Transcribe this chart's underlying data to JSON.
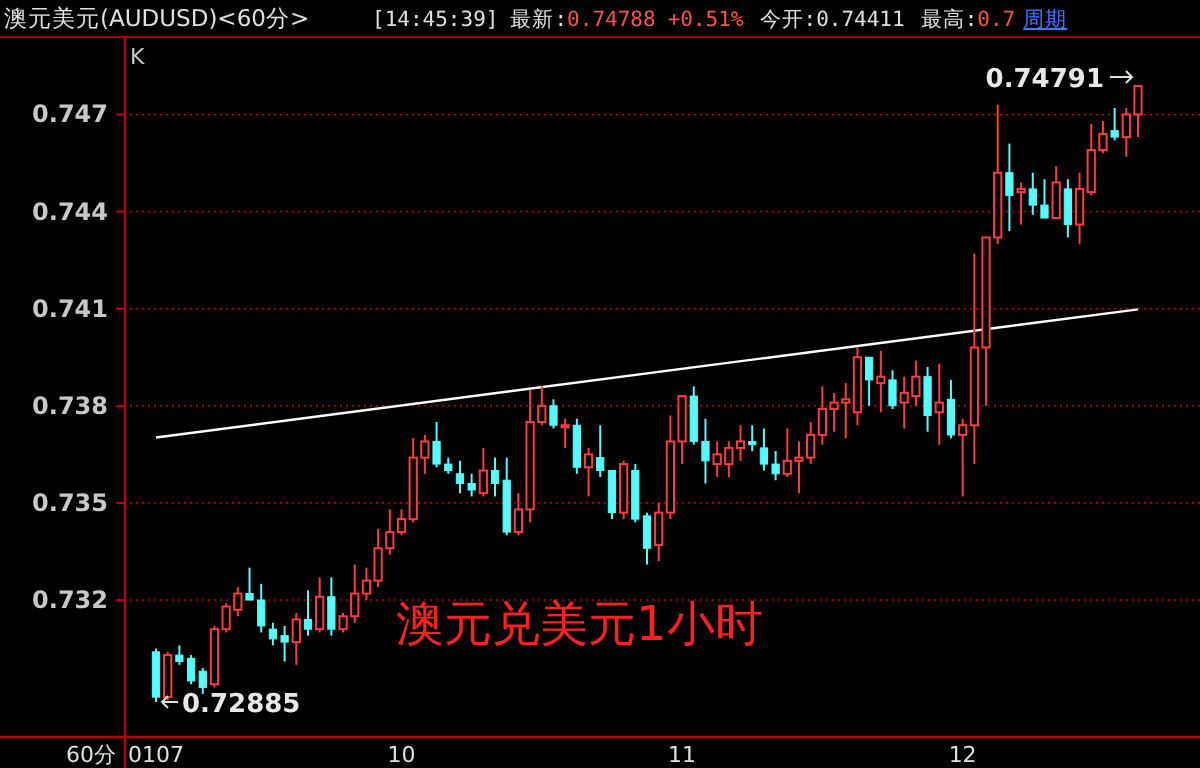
{
  "chart_data": {
    "type": "candlestick",
    "title": "澳元美元(AUDUSD)<60分>",
    "xlabel": "60分",
    "categories": [
      "0107",
      null,
      null,
      null,
      null,
      null,
      null,
      null,
      null,
      null,
      null,
      null,
      null,
      null,
      null,
      null,
      null,
      null,
      null,
      null,
      null,
      "10",
      null,
      null,
      null,
      null,
      null,
      null,
      null,
      null,
      null,
      null,
      null,
      null,
      null,
      null,
      null,
      null,
      null,
      null,
      null,
      null,
      null,
      null,
      null,
      "11",
      null,
      null,
      null,
      null,
      null,
      null,
      null,
      null,
      null,
      null,
      null,
      null,
      null,
      null,
      null,
      null,
      null,
      null,
      null,
      null,
      null,
      null,
      null,
      "12",
      null,
      null,
      null,
      null,
      null,
      null,
      null,
      null,
      null,
      null,
      null,
      null,
      null,
      null,
      null
    ],
    "ohlc": [
      [
        0.7304,
        0.7305,
        0.72885,
        0.729
      ],
      [
        0.729,
        0.7304,
        0.7289,
        0.7303
      ],
      [
        0.7303,
        0.7306,
        0.73,
        0.7301
      ],
      [
        0.7302,
        0.7303,
        0.7294,
        0.7295
      ],
      [
        0.7298,
        0.7299,
        0.7291,
        0.7293
      ],
      [
        0.7294,
        0.7312,
        0.7293,
        0.7311
      ],
      [
        0.7311,
        0.7319,
        0.731,
        0.7318
      ],
      [
        0.7317,
        0.7324,
        0.7315,
        0.7322
      ],
      [
        0.7322,
        0.733,
        0.732,
        0.732
      ],
      [
        0.732,
        0.7325,
        0.731,
        0.7312
      ],
      [
        0.7311,
        0.7313,
        0.7306,
        0.7308
      ],
      [
        0.7309,
        0.7312,
        0.7301,
        0.7307
      ],
      [
        0.7307,
        0.7316,
        0.73,
        0.7314
      ],
      [
        0.7314,
        0.7323,
        0.7309,
        0.7311
      ],
      [
        0.7311,
        0.7327,
        0.731,
        0.7321
      ],
      [
        0.7321,
        0.7327,
        0.7309,
        0.7311
      ],
      [
        0.7311,
        0.7316,
        0.731,
        0.7315
      ],
      [
        0.7315,
        0.7331,
        0.7313,
        0.7322
      ],
      [
        0.7322,
        0.733,
        0.732,
        0.7326
      ],
      [
        0.7326,
        0.7342,
        0.7324,
        0.7336
      ],
      [
        0.7336,
        0.7348,
        0.7334,
        0.7341
      ],
      [
        0.7341,
        0.7348,
        0.734,
        0.7345
      ],
      [
        0.7345,
        0.737,
        0.7344,
        0.7364
      ],
      [
        0.7364,
        0.7371,
        0.7359,
        0.7369
      ],
      [
        0.7369,
        0.7375,
        0.7361,
        0.7362
      ],
      [
        0.7362,
        0.7364,
        0.7359,
        0.736
      ],
      [
        0.7359,
        0.7363,
        0.7353,
        0.7356
      ],
      [
        0.7356,
        0.7359,
        0.7352,
        0.7354
      ],
      [
        0.7353,
        0.7367,
        0.7352,
        0.736
      ],
      [
        0.736,
        0.7364,
        0.7352,
        0.7356
      ],
      [
        0.7357,
        0.7364,
        0.734,
        0.7341
      ],
      [
        0.7341,
        0.7353,
        0.734,
        0.7348
      ],
      [
        0.7348,
        0.7385,
        0.7344,
        0.7375
      ],
      [
        0.7375,
        0.7386,
        0.7374,
        0.738
      ],
      [
        0.738,
        0.7382,
        0.7373,
        0.7374
      ],
      [
        0.7374,
        0.7376,
        0.7367,
        0.7374
      ],
      [
        0.7374,
        0.7376,
        0.7359,
        0.7361
      ],
      [
        0.7361,
        0.7367,
        0.7352,
        0.7365
      ],
      [
        0.7364,
        0.7374,
        0.7358,
        0.736
      ],
      [
        0.736,
        0.736,
        0.7345,
        0.7347
      ],
      [
        0.7347,
        0.7363,
        0.7345,
        0.7362
      ],
      [
        0.736,
        0.7362,
        0.7344,
        0.7345
      ],
      [
        0.7346,
        0.7347,
        0.7331,
        0.7336
      ],
      [
        0.7337,
        0.735,
        0.7332,
        0.7347
      ],
      [
        0.7347,
        0.7377,
        0.7345,
        0.7369
      ],
      [
        0.7369,
        0.7383,
        0.7362,
        0.7383
      ],
      [
        0.7383,
        0.7386,
        0.7368,
        0.7369
      ],
      [
        0.7369,
        0.7376,
        0.7356,
        0.7363
      ],
      [
        0.7362,
        0.7369,
        0.7358,
        0.7365
      ],
      [
        0.7362,
        0.7369,
        0.7358,
        0.7367
      ],
      [
        0.7367,
        0.7374,
        0.7363,
        0.7369
      ],
      [
        0.7369,
        0.7374,
        0.7366,
        0.7368
      ],
      [
        0.7367,
        0.7373,
        0.736,
        0.7362
      ],
      [
        0.7362,
        0.7366,
        0.7357,
        0.7359
      ],
      [
        0.7359,
        0.7373,
        0.7358,
        0.7363
      ],
      [
        0.7363,
        0.7369,
        0.7353,
        0.7364
      ],
      [
        0.7364,
        0.7375,
        0.7362,
        0.7371
      ],
      [
        0.7371,
        0.7386,
        0.7368,
        0.7379
      ],
      [
        0.7379,
        0.7384,
        0.7372,
        0.7381
      ],
      [
        0.7381,
        0.7387,
        0.737,
        0.7382
      ],
      [
        0.7378,
        0.7398,
        0.7374,
        0.7395
      ],
      [
        0.7395,
        0.7395,
        0.738,
        0.7388
      ],
      [
        0.7387,
        0.7397,
        0.7378,
        0.7389
      ],
      [
        0.7388,
        0.7391,
        0.7379,
        0.738
      ],
      [
        0.7381,
        0.7389,
        0.7373,
        0.7384
      ],
      [
        0.7383,
        0.7394,
        0.738,
        0.7389
      ],
      [
        0.7389,
        0.7392,
        0.7372,
        0.7377
      ],
      [
        0.7378,
        0.7393,
        0.7368,
        0.7381
      ],
      [
        0.7382,
        0.7388,
        0.737,
        0.7371
      ],
      [
        0.7371,
        0.7376,
        0.7352,
        0.7374
      ],
      [
        0.7374,
        0.7427,
        0.7362,
        0.7398
      ],
      [
        0.7398,
        0.7432,
        0.738,
        0.7432
      ],
      [
        0.7432,
        0.7473,
        0.743,
        0.7452
      ],
      [
        0.7452,
        0.7461,
        0.7434,
        0.7445
      ],
      [
        0.7446,
        0.7449,
        0.7436,
        0.7447
      ],
      [
        0.7447,
        0.7452,
        0.7439,
        0.7442
      ],
      [
        0.7442,
        0.745,
        0.7438,
        0.7438
      ],
      [
        0.7438,
        0.7454,
        0.7438,
        0.7449
      ],
      [
        0.7447,
        0.745,
        0.7432,
        0.7436
      ],
      [
        0.7436,
        0.7452,
        0.743,
        0.7447
      ],
      [
        0.7446,
        0.7467,
        0.7445,
        0.7459
      ],
      [
        0.7459,
        0.7468,
        0.7458,
        0.7464
      ],
      [
        0.7465,
        0.7472,
        0.7462,
        0.7463
      ],
      [
        0.7463,
        0.7472,
        0.7457,
        0.747
      ],
      [
        0.747,
        0.74791,
        0.7463,
        0.74788
      ]
    ],
    "series": [
      {
        "type": "line",
        "color": "#ffffff",
        "values": [
          0.73702,
          null,
          null,
          null,
          null,
          null,
          null,
          null,
          null,
          null,
          null,
          null,
          null,
          null,
          null,
          null,
          null,
          null,
          null,
          null,
          null,
          null,
          null,
          null,
          null,
          null,
          null,
          null,
          null,
          null,
          null,
          null,
          null,
          null,
          null,
          null,
          null,
          null,
          null,
          null,
          null,
          null,
          null,
          null,
          null,
          null,
          null,
          null,
          null,
          null,
          null,
          null,
          null,
          null,
          null,
          null,
          null,
          null,
          null,
          null,
          null,
          null,
          null,
          null,
          null,
          null,
          null,
          null,
          null,
          null,
          null,
          null,
          null,
          null,
          null,
          null,
          null,
          null,
          null,
          null,
          null,
          null,
          null,
          null,
          0.74098
        ]
      }
    ],
    "ylim": [
      0.7278,
      0.7493
    ],
    "yticks": [
      0.732,
      0.735,
      0.738,
      0.741,
      0.744,
      0.747
    ],
    "grid": "y",
    "annotations": [
      "K",
      "0.72885",
      "0.74791",
      "澳元兑美元1小时",
      "[14:45:39]",
      "最新:",
      "0.74788",
      "+0.51%",
      "今开:0.74411",
      "最高:",
      "0.7",
      "周期"
    ]
  }
}
